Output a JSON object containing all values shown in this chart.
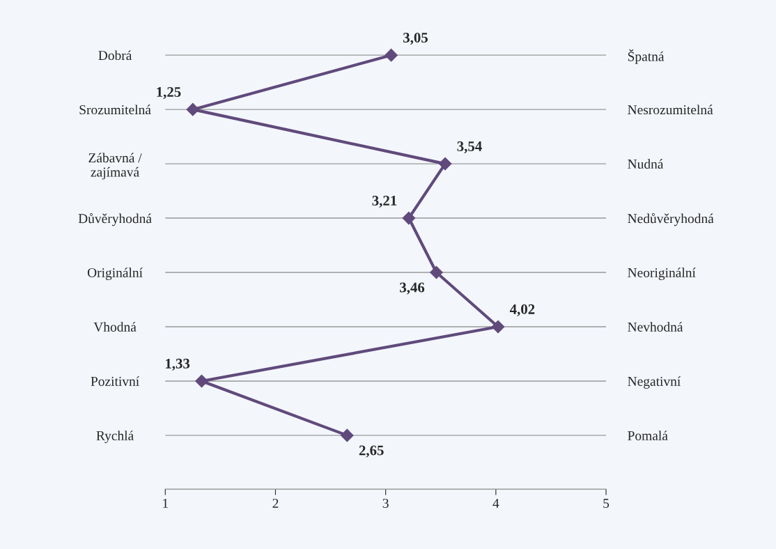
{
  "chart_data": {
    "type": "line",
    "orientation": "horizontal",
    "categories": [
      "Dobrá",
      "Srozumitelná",
      "Zábavná /\nzajímavá",
      "Důvěryhodná",
      "Originální",
      "Vhodná",
      "Pozitivní",
      "Rychlá"
    ],
    "y2_categories": [
      "Špatná",
      "Nesrozumitelná",
      "Nudná",
      "Nedůvěryhodná",
      "Neoriginální",
      "Nevhodná",
      "Negativní",
      "Pomalá"
    ],
    "series": [
      {
        "color": "#604a7b",
        "values": [
          3.05,
          1.25,
          3.54,
          3.21,
          3.46,
          4.02,
          1.33,
          2.65
        ],
        "value_labels": [
          "3,05",
          "1,25",
          "3,54",
          "3,21",
          "3,46",
          "4,02",
          "1,33",
          "2,65"
        ]
      }
    ],
    "xlim": [
      1,
      5
    ],
    "xticks": [
      1,
      2,
      3,
      4,
      5
    ],
    "marker": "diamond",
    "line_style": "solid",
    "grid": "y",
    "legend": false
  }
}
